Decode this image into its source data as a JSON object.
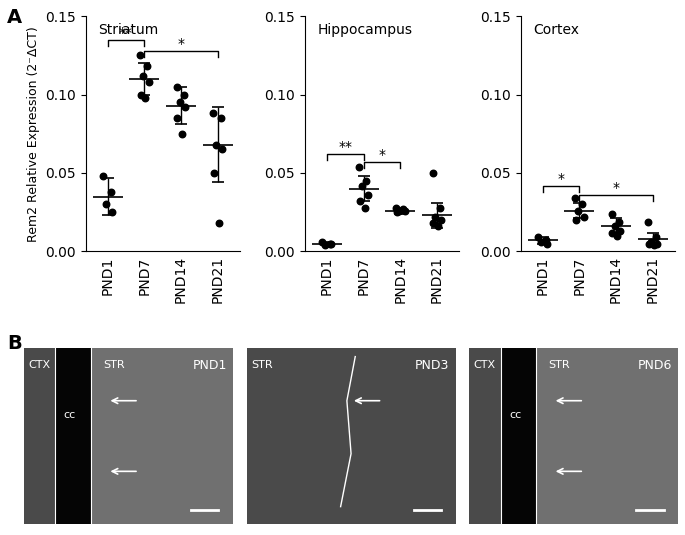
{
  "chart_data": [
    {
      "type": "scatter",
      "title": "Striatum",
      "ylabel": "Rem2 Relative Expression (2⁻ΔCT)",
      "categories": [
        "PND1",
        "PND7",
        "PND14",
        "PND21"
      ],
      "points": [
        [
          0.048,
          0.038,
          0.03,
          0.025
        ],
        [
          0.125,
          0.118,
          0.112,
          0.108,
          0.1,
          0.098
        ],
        [
          0.105,
          0.1,
          0.095,
          0.092,
          0.085,
          0.075
        ],
        [
          0.088,
          0.085,
          0.068,
          0.065,
          0.05,
          0.018
        ]
      ],
      "means": [
        0.035,
        0.11,
        0.093,
        0.068
      ],
      "sd": [
        0.012,
        0.01,
        0.012,
        0.024
      ],
      "significance": [
        {
          "from": "PND1",
          "to": "PND7",
          "y": 0.135,
          "label": "**"
        },
        {
          "from": "PND7",
          "to": "PND21",
          "y": 0.128,
          "label": "*"
        }
      ],
      "ylim": [
        0,
        0.15
      ],
      "yticks": [
        {
          "value": 0,
          "label": "0.00"
        },
        {
          "value": 0.05,
          "label": "0.05"
        },
        {
          "value": 0.1,
          "label": "0.10"
        },
        {
          "value": 0.15,
          "label": "0.15"
        }
      ],
      "color": "#000000"
    },
    {
      "type": "scatter",
      "title": "Hippocampus",
      "categories": [
        "PND1",
        "PND7",
        "PND14",
        "PND21"
      ],
      "points": [
        [
          0.006,
          0.005,
          0.004,
          0.005
        ],
        [
          0.054,
          0.045,
          0.042,
          0.036,
          0.032,
          0.028
        ],
        [
          0.028,
          0.027,
          0.026,
          0.026,
          0.025
        ],
        [
          0.05,
          0.028,
          0.022,
          0.02,
          0.018,
          0.016
        ]
      ],
      "means": [
        0.005,
        0.04,
        0.026,
        0.023
      ],
      "sd": [
        0.001,
        0.008,
        0.002,
        0.008
      ],
      "significance": [
        {
          "from": "PND1",
          "to": "PND7",
          "y": 0.062,
          "label": "**"
        },
        {
          "from": "PND7",
          "to": "PND14",
          "y": 0.057,
          "label": "*"
        }
      ],
      "ylim": [
        0,
        0.15
      ],
      "yticks": [
        {
          "value": 0,
          "label": "0.00"
        },
        {
          "value": 0.05,
          "label": "0.05"
        },
        {
          "value": 0.1,
          "label": "0.10"
        },
        {
          "value": 0.15,
          "label": "0.15"
        }
      ],
      "color": "#000000"
    },
    {
      "type": "scatter",
      "title": "Cortex",
      "categories": [
        "PND1",
        "PND7",
        "PND14",
        "PND21"
      ],
      "points": [
        [
          0.009,
          0.007,
          0.006,
          0.005
        ],
        [
          0.034,
          0.03,
          0.026,
          0.022,
          0.02
        ],
        [
          0.024,
          0.019,
          0.016,
          0.013,
          0.012,
          0.01
        ],
        [
          0.019,
          0.009,
          0.006,
          0.005,
          0.005,
          0.004
        ]
      ],
      "means": [
        0.007,
        0.026,
        0.016,
        0.008
      ],
      "sd": [
        0.002,
        0.005,
        0.005,
        0.004
      ],
      "significance": [
        {
          "from": "PND1",
          "to": "PND7",
          "y": 0.042,
          "label": "*"
        },
        {
          "from": "PND7",
          "to": "PND21",
          "y": 0.036,
          "label": "*"
        }
      ],
      "ylim": [
        0,
        0.15
      ],
      "yticks": [
        {
          "value": 0,
          "label": "0.00"
        },
        {
          "value": 0.05,
          "label": "0.05"
        },
        {
          "value": 0.1,
          "label": "0.10"
        },
        {
          "value": 0.15,
          "label": "0.15"
        }
      ],
      "color": "#000000"
    }
  ],
  "panel_labels": [
    "A",
    "B"
  ],
  "images": [
    {
      "regions": [
        "CTX",
        "cc",
        "STR"
      ],
      "stage": "PND1"
    },
    {
      "regions": [
        "STR"
      ],
      "stage": "PND3"
    },
    {
      "regions": [
        "CTX",
        "cc",
        "STR"
      ],
      "stage": "PND6"
    }
  ]
}
